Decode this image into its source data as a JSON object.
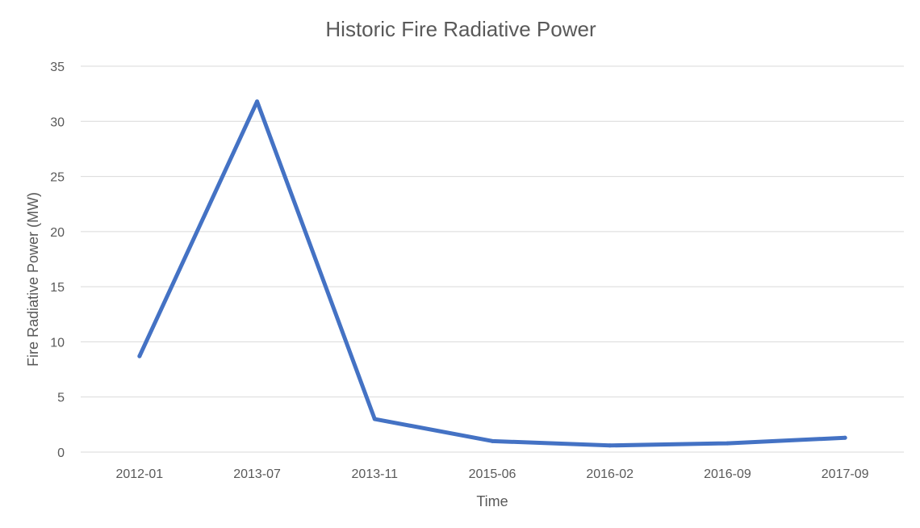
{
  "chart_data": {
    "type": "line",
    "title": "Historic Fire Radiative Power",
    "xlabel": "Time",
    "ylabel": "Fire Radiative Power (MW)",
    "categories": [
      "2012-01",
      "2013-07",
      "2013-11",
      "2015-06",
      "2016-02",
      "2016-09",
      "2017-09"
    ],
    "series": [
      {
        "values": [
          8.7,
          31.8,
          3.0,
          1.0,
          0.6,
          0.8,
          1.3
        ],
        "color": "#4472c4"
      }
    ],
    "ylim": [
      0,
      35
    ],
    "yticks": [
      0,
      5,
      10,
      15,
      20,
      25,
      30,
      35
    ],
    "grid": true,
    "legend": "none"
  }
}
